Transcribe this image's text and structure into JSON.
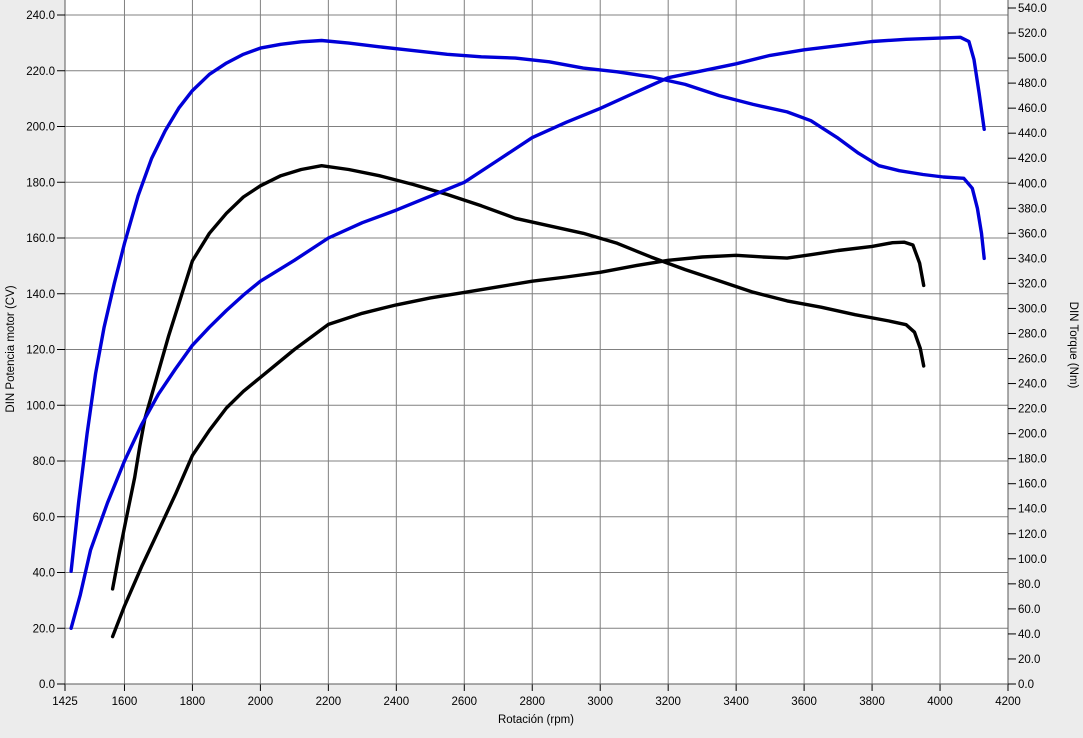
{
  "chart_data": {
    "type": "line",
    "title": "",
    "xlabel": "Rotación (rpm)",
    "ylabel_left": "DIN Potencia motor (CV)",
    "ylabel_right": "DIN Torque (Nm)",
    "x_range": [
      1425,
      4200
    ],
    "x_ticks": [
      1425,
      1600,
      1800,
      2000,
      2200,
      2400,
      2600,
      2800,
      3000,
      3200,
      3400,
      3600,
      3800,
      4000,
      4200
    ],
    "y_left": {
      "range": [
        0,
        240
      ],
      "tick_step": 20,
      "decimals": 1
    },
    "y_right": {
      "range": [
        0,
        540
      ],
      "tick_step": 20,
      "decimals": 1
    },
    "grid": true,
    "colors": {
      "tuned": "#0000d8",
      "stock": "#000000",
      "gridline": "#808080",
      "frame": "#5a5a5a",
      "plot_bg": "#ffffff",
      "margin_bg": "#ececec"
    },
    "series": [
      {
        "name": "torque-stock",
        "axis": "right",
        "color": "#000000",
        "points": [
          [
            1565,
            76
          ],
          [
            1585,
            105
          ],
          [
            1605,
            132
          ],
          [
            1630,
            165
          ],
          [
            1645,
            190
          ],
          [
            1660,
            212
          ],
          [
            1695,
            245
          ],
          [
            1730,
            278
          ],
          [
            1765,
            308
          ],
          [
            1800,
            338
          ],
          [
            1850,
            360
          ],
          [
            1900,
            376
          ],
          [
            1950,
            389
          ],
          [
            2000,
            398
          ],
          [
            2060,
            406
          ],
          [
            2120,
            411
          ],
          [
            2180,
            414
          ],
          [
            2260,
            411
          ],
          [
            2350,
            406
          ],
          [
            2450,
            399
          ],
          [
            2550,
            391
          ],
          [
            2650,
            382
          ],
          [
            2750,
            372
          ],
          [
            2850,
            366
          ],
          [
            2950,
            360
          ],
          [
            3050,
            352
          ],
          [
            3150,
            341
          ],
          [
            3250,
            331
          ],
          [
            3350,
            322
          ],
          [
            3450,
            313
          ],
          [
            3550,
            306
          ],
          [
            3650,
            301
          ],
          [
            3750,
            295
          ],
          [
            3850,
            290
          ],
          [
            3900,
            287
          ],
          [
            3925,
            281
          ],
          [
            3942,
            268
          ],
          [
            3952,
            254
          ]
        ]
      },
      {
        "name": "power-stock",
        "axis": "left",
        "color": "#000000",
        "points": [
          [
            1565,
            17
          ],
          [
            1600,
            28
          ],
          [
            1650,
            42
          ],
          [
            1700,
            55
          ],
          [
            1750,
            68
          ],
          [
            1800,
            82
          ],
          [
            1850,
            91
          ],
          [
            1900,
            99
          ],
          [
            1950,
            105
          ],
          [
            2000,
            110
          ],
          [
            2100,
            120
          ],
          [
            2200,
            129
          ],
          [
            2300,
            133
          ],
          [
            2400,
            136
          ],
          [
            2500,
            138.5
          ],
          [
            2600,
            140.5
          ],
          [
            2700,
            142.5
          ],
          [
            2800,
            144.5
          ],
          [
            2900,
            146
          ],
          [
            3000,
            147.7
          ],
          [
            3100,
            150
          ],
          [
            3200,
            152
          ],
          [
            3300,
            153.2
          ],
          [
            3400,
            153.8
          ],
          [
            3480,
            153.2
          ],
          [
            3550,
            152.8
          ],
          [
            3620,
            154
          ],
          [
            3700,
            155.5
          ],
          [
            3800,
            157
          ],
          [
            3860,
            158.3
          ],
          [
            3895,
            158.5
          ],
          [
            3920,
            157.5
          ],
          [
            3940,
            151
          ],
          [
            3952,
            143
          ]
        ]
      },
      {
        "name": "torque-tuned",
        "axis": "right",
        "color": "#0000d8",
        "points": [
          [
            1443,
            90
          ],
          [
            1465,
            145
          ],
          [
            1490,
            200
          ],
          [
            1515,
            248
          ],
          [
            1540,
            285
          ],
          [
            1570,
            320
          ],
          [
            1600,
            352
          ],
          [
            1640,
            390
          ],
          [
            1680,
            420
          ],
          [
            1720,
            442
          ],
          [
            1760,
            460
          ],
          [
            1800,
            474
          ],
          [
            1850,
            487
          ],
          [
            1900,
            496
          ],
          [
            1950,
            503
          ],
          [
            2000,
            508
          ],
          [
            2060,
            511
          ],
          [
            2120,
            513
          ],
          [
            2180,
            514
          ],
          [
            2260,
            512
          ],
          [
            2350,
            509
          ],
          [
            2450,
            506
          ],
          [
            2550,
            503
          ],
          [
            2650,
            501
          ],
          [
            2750,
            500
          ],
          [
            2850,
            497
          ],
          [
            2950,
            492
          ],
          [
            3050,
            489
          ],
          [
            3150,
            485
          ],
          [
            3250,
            479
          ],
          [
            3350,
            470
          ],
          [
            3450,
            463
          ],
          [
            3550,
            457
          ],
          [
            3620,
            450
          ],
          [
            3700,
            436
          ],
          [
            3760,
            424
          ],
          [
            3820,
            414
          ],
          [
            3880,
            410
          ],
          [
            3950,
            407
          ],
          [
            4010,
            405
          ],
          [
            4070,
            404
          ],
          [
            4095,
            396
          ],
          [
            4110,
            380
          ],
          [
            4122,
            360
          ],
          [
            4130,
            340
          ]
        ]
      },
      {
        "name": "power-tuned",
        "axis": "left",
        "color": "#0000d8",
        "points": [
          [
            1443,
            20
          ],
          [
            1470,
            32
          ],
          [
            1500,
            48
          ],
          [
            1550,
            65
          ],
          [
            1600,
            80
          ],
          [
            1650,
            93
          ],
          [
            1700,
            104
          ],
          [
            1750,
            113
          ],
          [
            1800,
            121.5
          ],
          [
            1850,
            128
          ],
          [
            1900,
            134
          ],
          [
            1950,
            139.5
          ],
          [
            2000,
            144.5
          ],
          [
            2100,
            152
          ],
          [
            2200,
            160
          ],
          [
            2300,
            165.5
          ],
          [
            2400,
            170
          ],
          [
            2500,
            175
          ],
          [
            2600,
            180
          ],
          [
            2700,
            188
          ],
          [
            2800,
            196
          ],
          [
            2900,
            201.5
          ],
          [
            3000,
            206.5
          ],
          [
            3100,
            212
          ],
          [
            3200,
            217.5
          ],
          [
            3300,
            220
          ],
          [
            3400,
            222.5
          ],
          [
            3500,
            225.5
          ],
          [
            3600,
            227.5
          ],
          [
            3700,
            229
          ],
          [
            3800,
            230.5
          ],
          [
            3900,
            231.3
          ],
          [
            4000,
            231.7
          ],
          [
            4060,
            232
          ],
          [
            4085,
            230.5
          ],
          [
            4100,
            224
          ],
          [
            4115,
            212
          ],
          [
            4130,
            199
          ]
        ]
      }
    ]
  }
}
